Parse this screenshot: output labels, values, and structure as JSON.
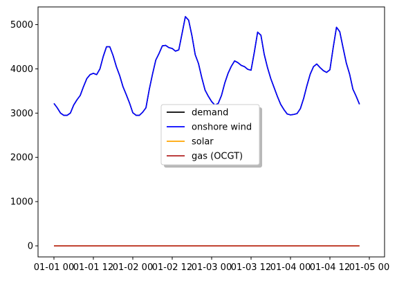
{
  "chart_data": {
    "type": "line",
    "xlim": [
      "2023-01-01 00:00",
      "2023-01-05 00:00"
    ],
    "ylim": [
      -250,
      5400
    ],
    "x_ticks": [
      {
        "value": "2023-01-01 00:00",
        "label": "01-01 00"
      },
      {
        "value": "2023-01-01 12:00",
        "label": "01-01 12"
      },
      {
        "value": "2023-01-02 00:00",
        "label": "01-02 00"
      },
      {
        "value": "2023-01-02 12:00",
        "label": "01-02 12"
      },
      {
        "value": "2023-01-03 00:00",
        "label": "01-03 00"
      },
      {
        "value": "2023-01-03 12:00",
        "label": "01-03 12"
      },
      {
        "value": "2023-01-04 00:00",
        "label": "01-04 00"
      },
      {
        "value": "2023-01-04 12:00",
        "label": "01-04 12"
      },
      {
        "value": "2023-01-05 00:00",
        "label": "01-05 00"
      }
    ],
    "y_ticks": [
      {
        "value": 0,
        "label": "0"
      },
      {
        "value": 1000,
        "label": "1000"
      },
      {
        "value": 2000,
        "label": "2000"
      },
      {
        "value": 3000,
        "label": "3000"
      },
      {
        "value": 4000,
        "label": "4000"
      },
      {
        "value": 5000,
        "label": "5000"
      }
    ],
    "grid": false,
    "legend_position": "center",
    "series": [
      {
        "name": "demand",
        "color": "#000000",
        "points": [
          [
            "2023-01-01 00:00",
            3220
          ],
          [
            "2023-01-01 01:00",
            3120
          ],
          [
            "2023-01-01 02:00",
            3000
          ],
          [
            "2023-01-01 03:00",
            2950
          ],
          [
            "2023-01-01 04:00",
            2950
          ],
          [
            "2023-01-01 05:00",
            3000
          ],
          [
            "2023-01-01 06:00",
            3180
          ],
          [
            "2023-01-01 07:00",
            3300
          ],
          [
            "2023-01-01 08:00",
            3400
          ],
          [
            "2023-01-01 09:00",
            3600
          ],
          [
            "2023-01-01 10:00",
            3780
          ],
          [
            "2023-01-01 11:00",
            3870
          ],
          [
            "2023-01-01 12:00",
            3900
          ],
          [
            "2023-01-01 13:00",
            3870
          ],
          [
            "2023-01-01 14:00",
            4000
          ],
          [
            "2023-01-01 15:00",
            4280
          ],
          [
            "2023-01-01 16:00",
            4500
          ],
          [
            "2023-01-01 17:00",
            4500
          ],
          [
            "2023-01-01 18:00",
            4300
          ],
          [
            "2023-01-01 19:00",
            4050
          ],
          [
            "2023-01-01 20:00",
            3850
          ],
          [
            "2023-01-01 21:00",
            3600
          ],
          [
            "2023-01-01 22:00",
            3420
          ],
          [
            "2023-01-01 23:00",
            3230
          ],
          [
            "2023-01-02 00:00",
            3010
          ],
          [
            "2023-01-02 01:00",
            2950
          ],
          [
            "2023-01-02 02:00",
            2950
          ],
          [
            "2023-01-02 03:00",
            3020
          ],
          [
            "2023-01-02 04:00",
            3120
          ],
          [
            "2023-01-02 05:00",
            3530
          ],
          [
            "2023-01-02 06:00",
            3880
          ],
          [
            "2023-01-02 07:00",
            4200
          ],
          [
            "2023-01-02 08:00",
            4350
          ],
          [
            "2023-01-02 09:00",
            4520
          ],
          [
            "2023-01-02 10:00",
            4530
          ],
          [
            "2023-01-02 11:00",
            4480
          ],
          [
            "2023-01-02 12:00",
            4460
          ],
          [
            "2023-01-02 13:00",
            4400
          ],
          [
            "2023-01-02 14:00",
            4430
          ],
          [
            "2023-01-02 15:00",
            4800
          ],
          [
            "2023-01-02 16:00",
            5180
          ],
          [
            "2023-01-02 17:00",
            5100
          ],
          [
            "2023-01-02 18:00",
            4750
          ],
          [
            "2023-01-02 19:00",
            4320
          ],
          [
            "2023-01-02 20:00",
            4120
          ],
          [
            "2023-01-02 21:00",
            3800
          ],
          [
            "2023-01-02 22:00",
            3520
          ],
          [
            "2023-01-02 23:00",
            3380
          ],
          [
            "2023-01-03 00:00",
            3260
          ],
          [
            "2023-01-03 01:00",
            3180
          ],
          [
            "2023-01-03 02:00",
            3220
          ],
          [
            "2023-01-03 03:00",
            3400
          ],
          [
            "2023-01-03 04:00",
            3680
          ],
          [
            "2023-01-03 05:00",
            3900
          ],
          [
            "2023-01-03 06:00",
            4060
          ],
          [
            "2023-01-03 07:00",
            4180
          ],
          [
            "2023-01-03 08:00",
            4140
          ],
          [
            "2023-01-03 09:00",
            4080
          ],
          [
            "2023-01-03 10:00",
            4050
          ],
          [
            "2023-01-03 11:00",
            3990
          ],
          [
            "2023-01-03 12:00",
            3970
          ],
          [
            "2023-01-03 13:00",
            4380
          ],
          [
            "2023-01-03 14:00",
            4830
          ],
          [
            "2023-01-03 15:00",
            4760
          ],
          [
            "2023-01-03 16:00",
            4330
          ],
          [
            "2023-01-03 17:00",
            4030
          ],
          [
            "2023-01-03 18:00",
            3780
          ],
          [
            "2023-01-03 19:00",
            3580
          ],
          [
            "2023-01-03 20:00",
            3380
          ],
          [
            "2023-01-03 21:00",
            3200
          ],
          [
            "2023-01-03 22:00",
            3080
          ],
          [
            "2023-01-03 23:00",
            2980
          ],
          [
            "2023-01-04 00:00",
            2960
          ],
          [
            "2023-01-04 01:00",
            2970
          ],
          [
            "2023-01-04 02:00",
            2990
          ],
          [
            "2023-01-04 03:00",
            3100
          ],
          [
            "2023-01-04 04:00",
            3330
          ],
          [
            "2023-01-04 05:00",
            3620
          ],
          [
            "2023-01-04 06:00",
            3880
          ],
          [
            "2023-01-04 07:00",
            4050
          ],
          [
            "2023-01-04 08:00",
            4110
          ],
          [
            "2023-01-04 09:00",
            4030
          ],
          [
            "2023-01-04 10:00",
            3960
          ],
          [
            "2023-01-04 11:00",
            3920
          ],
          [
            "2023-01-04 12:00",
            3980
          ],
          [
            "2023-01-04 13:00",
            4480
          ],
          [
            "2023-01-04 14:00",
            4940
          ],
          [
            "2023-01-04 15:00",
            4840
          ],
          [
            "2023-01-04 16:00",
            4480
          ],
          [
            "2023-01-04 17:00",
            4130
          ],
          [
            "2023-01-04 18:00",
            3880
          ],
          [
            "2023-01-04 19:00",
            3540
          ],
          [
            "2023-01-04 20:00",
            3380
          ],
          [
            "2023-01-04 21:00",
            3200
          ]
        ]
      },
      {
        "name": "onshore wind",
        "color": "#0000ff",
        "points": [
          [
            "2023-01-01 00:00",
            3220
          ],
          [
            "2023-01-01 01:00",
            3120
          ],
          [
            "2023-01-01 02:00",
            3000
          ],
          [
            "2023-01-01 03:00",
            2950
          ],
          [
            "2023-01-01 04:00",
            2950
          ],
          [
            "2023-01-01 05:00",
            3000
          ],
          [
            "2023-01-01 06:00",
            3180
          ],
          [
            "2023-01-01 07:00",
            3300
          ],
          [
            "2023-01-01 08:00",
            3400
          ],
          [
            "2023-01-01 09:00",
            3600
          ],
          [
            "2023-01-01 10:00",
            3780
          ],
          [
            "2023-01-01 11:00",
            3870
          ],
          [
            "2023-01-01 12:00",
            3900
          ],
          [
            "2023-01-01 13:00",
            3870
          ],
          [
            "2023-01-01 14:00",
            4000
          ],
          [
            "2023-01-01 15:00",
            4280
          ],
          [
            "2023-01-01 16:00",
            4500
          ],
          [
            "2023-01-01 17:00",
            4500
          ],
          [
            "2023-01-01 18:00",
            4300
          ],
          [
            "2023-01-01 19:00",
            4050
          ],
          [
            "2023-01-01 20:00",
            3850
          ],
          [
            "2023-01-01 21:00",
            3600
          ],
          [
            "2023-01-01 22:00",
            3420
          ],
          [
            "2023-01-01 23:00",
            3230
          ],
          [
            "2023-01-02 00:00",
            3010
          ],
          [
            "2023-01-02 01:00",
            2950
          ],
          [
            "2023-01-02 02:00",
            2950
          ],
          [
            "2023-01-02 03:00",
            3020
          ],
          [
            "2023-01-02 04:00",
            3120
          ],
          [
            "2023-01-02 05:00",
            3530
          ],
          [
            "2023-01-02 06:00",
            3880
          ],
          [
            "2023-01-02 07:00",
            4200
          ],
          [
            "2023-01-02 08:00",
            4350
          ],
          [
            "2023-01-02 09:00",
            4520
          ],
          [
            "2023-01-02 10:00",
            4530
          ],
          [
            "2023-01-02 11:00",
            4480
          ],
          [
            "2023-01-02 12:00",
            4460
          ],
          [
            "2023-01-02 13:00",
            4400
          ],
          [
            "2023-01-02 14:00",
            4430
          ],
          [
            "2023-01-02 15:00",
            4800
          ],
          [
            "2023-01-02 16:00",
            5180
          ],
          [
            "2023-01-02 17:00",
            5100
          ],
          [
            "2023-01-02 18:00",
            4750
          ],
          [
            "2023-01-02 19:00",
            4320
          ],
          [
            "2023-01-02 20:00",
            4120
          ],
          [
            "2023-01-02 21:00",
            3800
          ],
          [
            "2023-01-02 22:00",
            3520
          ],
          [
            "2023-01-02 23:00",
            3380
          ],
          [
            "2023-01-03 00:00",
            3260
          ],
          [
            "2023-01-03 01:00",
            3180
          ],
          [
            "2023-01-03 02:00",
            3220
          ],
          [
            "2023-01-03 03:00",
            3400
          ],
          [
            "2023-01-03 04:00",
            3680
          ],
          [
            "2023-01-03 05:00",
            3900
          ],
          [
            "2023-01-03 06:00",
            4060
          ],
          [
            "2023-01-03 07:00",
            4180
          ],
          [
            "2023-01-03 08:00",
            4140
          ],
          [
            "2023-01-03 09:00",
            4080
          ],
          [
            "2023-01-03 10:00",
            4050
          ],
          [
            "2023-01-03 11:00",
            3990
          ],
          [
            "2023-01-03 12:00",
            3970
          ],
          [
            "2023-01-03 13:00",
            4380
          ],
          [
            "2023-01-03 14:00",
            4830
          ],
          [
            "2023-01-03 15:00",
            4760
          ],
          [
            "2023-01-03 16:00",
            4330
          ],
          [
            "2023-01-03 17:00",
            4030
          ],
          [
            "2023-01-03 18:00",
            3780
          ],
          [
            "2023-01-03 19:00",
            3580
          ],
          [
            "2023-01-03 20:00",
            3380
          ],
          [
            "2023-01-03 21:00",
            3200
          ],
          [
            "2023-01-03 22:00",
            3080
          ],
          [
            "2023-01-03 23:00",
            2980
          ],
          [
            "2023-01-04 00:00",
            2960
          ],
          [
            "2023-01-04 01:00",
            2970
          ],
          [
            "2023-01-04 02:00",
            2990
          ],
          [
            "2023-01-04 03:00",
            3100
          ],
          [
            "2023-01-04 04:00",
            3330
          ],
          [
            "2023-01-04 05:00",
            3620
          ],
          [
            "2023-01-04 06:00",
            3880
          ],
          [
            "2023-01-04 07:00",
            4050
          ],
          [
            "2023-01-04 08:00",
            4110
          ],
          [
            "2023-01-04 09:00",
            4030
          ],
          [
            "2023-01-04 10:00",
            3960
          ],
          [
            "2023-01-04 11:00",
            3920
          ],
          [
            "2023-01-04 12:00",
            3980
          ],
          [
            "2023-01-04 13:00",
            4480
          ],
          [
            "2023-01-04 14:00",
            4940
          ],
          [
            "2023-01-04 15:00",
            4840
          ],
          [
            "2023-01-04 16:00",
            4480
          ],
          [
            "2023-01-04 17:00",
            4130
          ],
          [
            "2023-01-04 18:00",
            3880
          ],
          [
            "2023-01-04 19:00",
            3540
          ],
          [
            "2023-01-04 20:00",
            3380
          ],
          [
            "2023-01-04 21:00",
            3200
          ]
        ]
      },
      {
        "name": "solar",
        "color": "#ffa500",
        "points": [
          [
            "2023-01-01 00:00",
            0
          ],
          [
            "2023-01-04 21:00",
            0
          ]
        ]
      },
      {
        "name": "gas (OCGT)",
        "color": "#b22222",
        "points": [
          [
            "2023-01-01 00:00",
            0
          ],
          [
            "2023-01-04 21:00",
            0
          ]
        ]
      }
    ]
  }
}
